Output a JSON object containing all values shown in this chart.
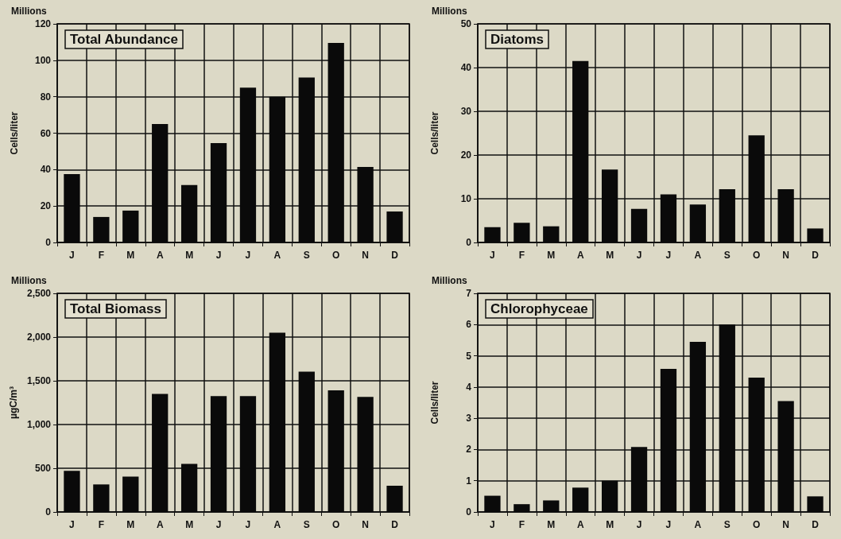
{
  "chart_data": [
    {
      "type": "bar",
      "title": "Total Abundance",
      "ylabel": "Cells/liter",
      "annotations": [
        "Millions"
      ],
      "categories": [
        "J",
        "F",
        "M",
        "A",
        "M",
        "J",
        "J",
        "A",
        "S",
        "O",
        "N",
        "D"
      ],
      "values": [
        37.5,
        14,
        17.5,
        65,
        31.5,
        54.5,
        85,
        80,
        90.5,
        109.5,
        41.5,
        17
      ],
      "color": "#0a0a0a",
      "ylim": [
        0,
        120
      ],
      "yticks": [
        0,
        20,
        40,
        60,
        80,
        100,
        120
      ],
      "grid": true
    },
    {
      "type": "bar",
      "title": "Diatoms",
      "ylabel": "Cells/liter",
      "annotations": [
        "Millions"
      ],
      "categories": [
        "J",
        "F",
        "M",
        "A",
        "M",
        "J",
        "J",
        "A",
        "S",
        "O",
        "N",
        "D"
      ],
      "values": [
        3.5,
        4.5,
        3.7,
        41.5,
        16.7,
        7.7,
        11,
        8.7,
        12.2,
        24.5,
        12.2,
        3.2
      ],
      "color": "#0a0a0a",
      "ylim": [
        0,
        50
      ],
      "yticks": [
        0,
        10,
        20,
        30,
        40,
        50
      ],
      "grid": true
    },
    {
      "type": "bar",
      "title": "Total Biomass",
      "ylabel": "µgC/m³",
      "annotations": [
        "Millions"
      ],
      "categories": [
        "J",
        "F",
        "M",
        "A",
        "M",
        "J",
        "J",
        "A",
        "S",
        "O",
        "N",
        "D"
      ],
      "values": [
        470,
        315,
        405,
        1350,
        550,
        1325,
        1325,
        2050,
        1605,
        1390,
        1315,
        300
      ],
      "color": "#0a0a0a",
      "ylim": [
        0,
        2500
      ],
      "yticks": [
        0,
        500,
        {
          "value": 1000,
          "label": "1,000"
        },
        {
          "value": 1500,
          "label": "1,500"
        },
        {
          "value": 2000,
          "label": "2,000"
        },
        {
          "value": 2500,
          "label": "2,500"
        }
      ],
      "grid": true
    },
    {
      "type": "bar",
      "title": "Chlorophyceae",
      "ylabel": "Cells/liter",
      "annotations": [
        "Millions"
      ],
      "categories": [
        "J",
        "F",
        "M",
        "A",
        "M",
        "J",
        "J",
        "A",
        "S",
        "O",
        "N",
        "D"
      ],
      "values": [
        0.52,
        0.25,
        0.37,
        0.78,
        1.0,
        2.08,
        4.58,
        5.45,
        6.0,
        4.3,
        3.55,
        0.5
      ],
      "color": "#0a0a0a",
      "ylim": [
        0,
        7
      ],
      "yticks": [
        0,
        1,
        2,
        3,
        4,
        5,
        6,
        7
      ],
      "grid": true
    }
  ]
}
